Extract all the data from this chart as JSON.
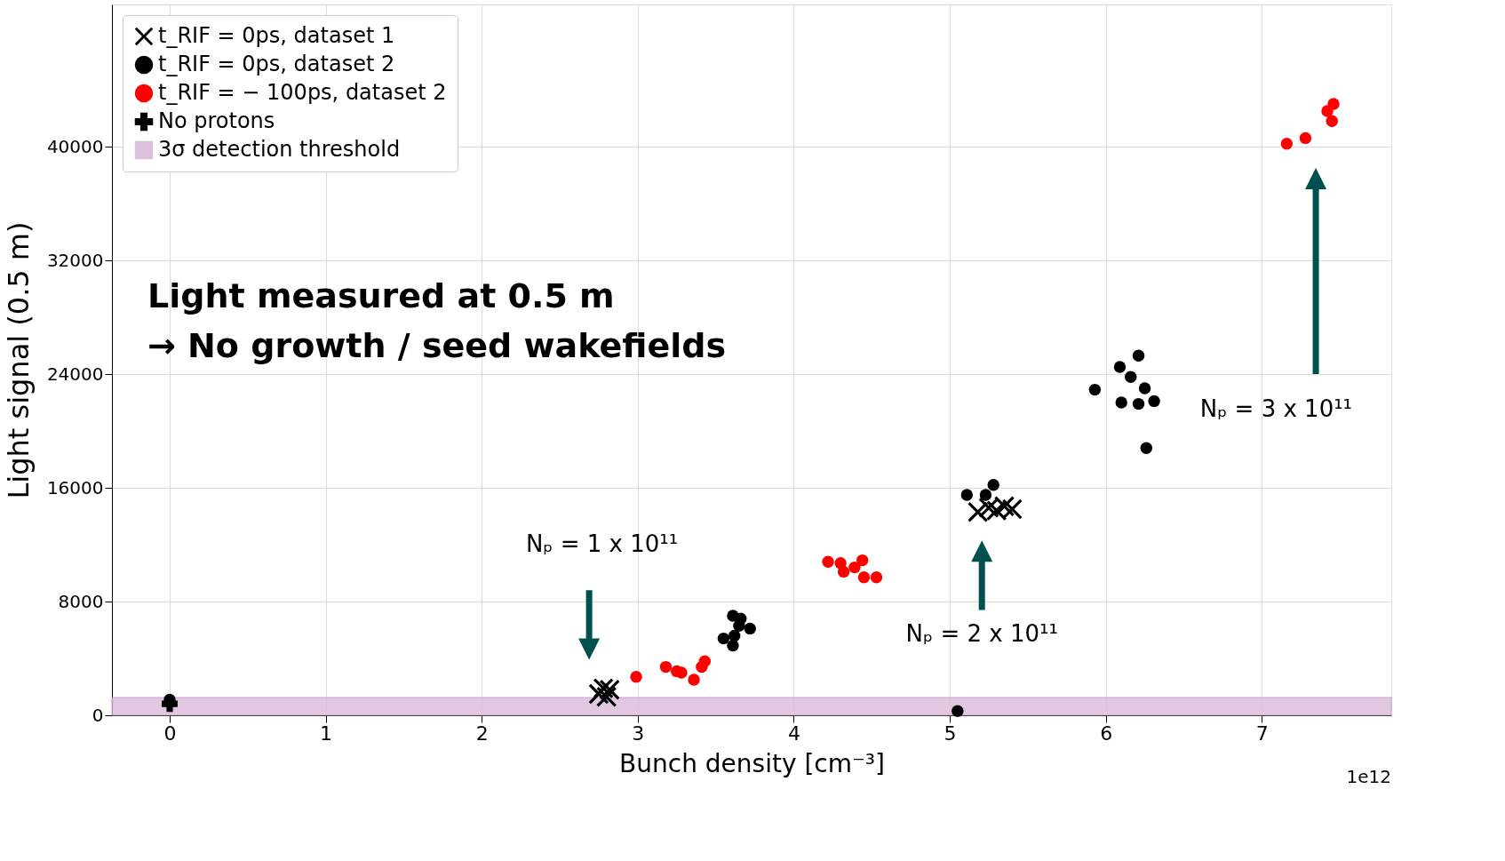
{
  "chart_data": {
    "type": "scatter",
    "xlabel": "Bunch density [cm⁻³]",
    "ylabel": "Light signal (0.5 m)",
    "xlim": [
      -0.37,
      7.83
    ],
    "xticks": [
      0,
      1,
      2,
      3,
      4,
      5,
      6,
      7
    ],
    "ylim": [
      0,
      50000
    ],
    "yticks": [
      0,
      8000,
      16000,
      24000,
      32000,
      40000
    ],
    "grid": true,
    "legend": "top left",
    "series": [
      {
        "name": "t_RIF = 0ps, dataset 1",
        "color": "#000000",
        "marker": "cross",
        "x": [
          2.75,
          2.78,
          2.8,
          2.82,
          5.18,
          5.25,
          5.3,
          5.35,
          5.4
        ],
        "values": [
          1500,
          1900,
          1300,
          1800,
          14300,
          14600,
          14400,
          14700,
          14500
        ]
      },
      {
        "name": "t_RIF = 0ps, dataset 2",
        "color": "#000000",
        "marker": "circle",
        "x": [
          0.0,
          3.61,
          3.66,
          3.72,
          3.55,
          3.62,
          3.61,
          3.65,
          5.05,
          5.11,
          5.28,
          5.23,
          5.93,
          6.09,
          6.21,
          6.16,
          6.25,
          6.1,
          6.21,
          6.31,
          6.26
        ],
        "values": [
          1100,
          7000,
          6800,
          6100,
          5400,
          5600,
          4900,
          6300,
          300,
          15500,
          16200,
          15500,
          22900,
          24500,
          25300,
          23800,
          23000,
          22000,
          21900,
          22100,
          18800
        ]
      },
      {
        "name": "t_RIF = − 100ps, dataset 2",
        "color": "#ff0000",
        "marker": "circle",
        "x": [
          2.99,
          3.18,
          3.25,
          3.28,
          3.36,
          3.41,
          3.43,
          4.22,
          4.3,
          4.32,
          4.44,
          4.39,
          4.45,
          4.53,
          7.16,
          7.28,
          7.42,
          7.46,
          7.45
        ],
        "values": [
          2700,
          3400,
          3100,
          3000,
          2500,
          3400,
          3800,
          10800,
          10700,
          10100,
          10900,
          10400,
          9700,
          9700,
          40200,
          40600,
          42500,
          43000,
          41800
        ]
      },
      {
        "name": "No protons",
        "color": "#000000",
        "marker": "plus",
        "x": [
          0
        ],
        "values": [
          800
        ]
      }
    ],
    "bands": [
      {
        "axis": "y",
        "from": 0,
        "to": 1250,
        "label": "3σ detection threshold",
        "color": "#dcbfdc"
      }
    ],
    "annotations": [
      "Light measured at 0.5 m",
      "→ No growth / seed wakefields",
      "1e12",
      "Nₚ = 1 x 10¹¹",
      "Nₚ = 2 x 10¹¹",
      "Nₚ = 3 x 10¹¹"
    ]
  }
}
